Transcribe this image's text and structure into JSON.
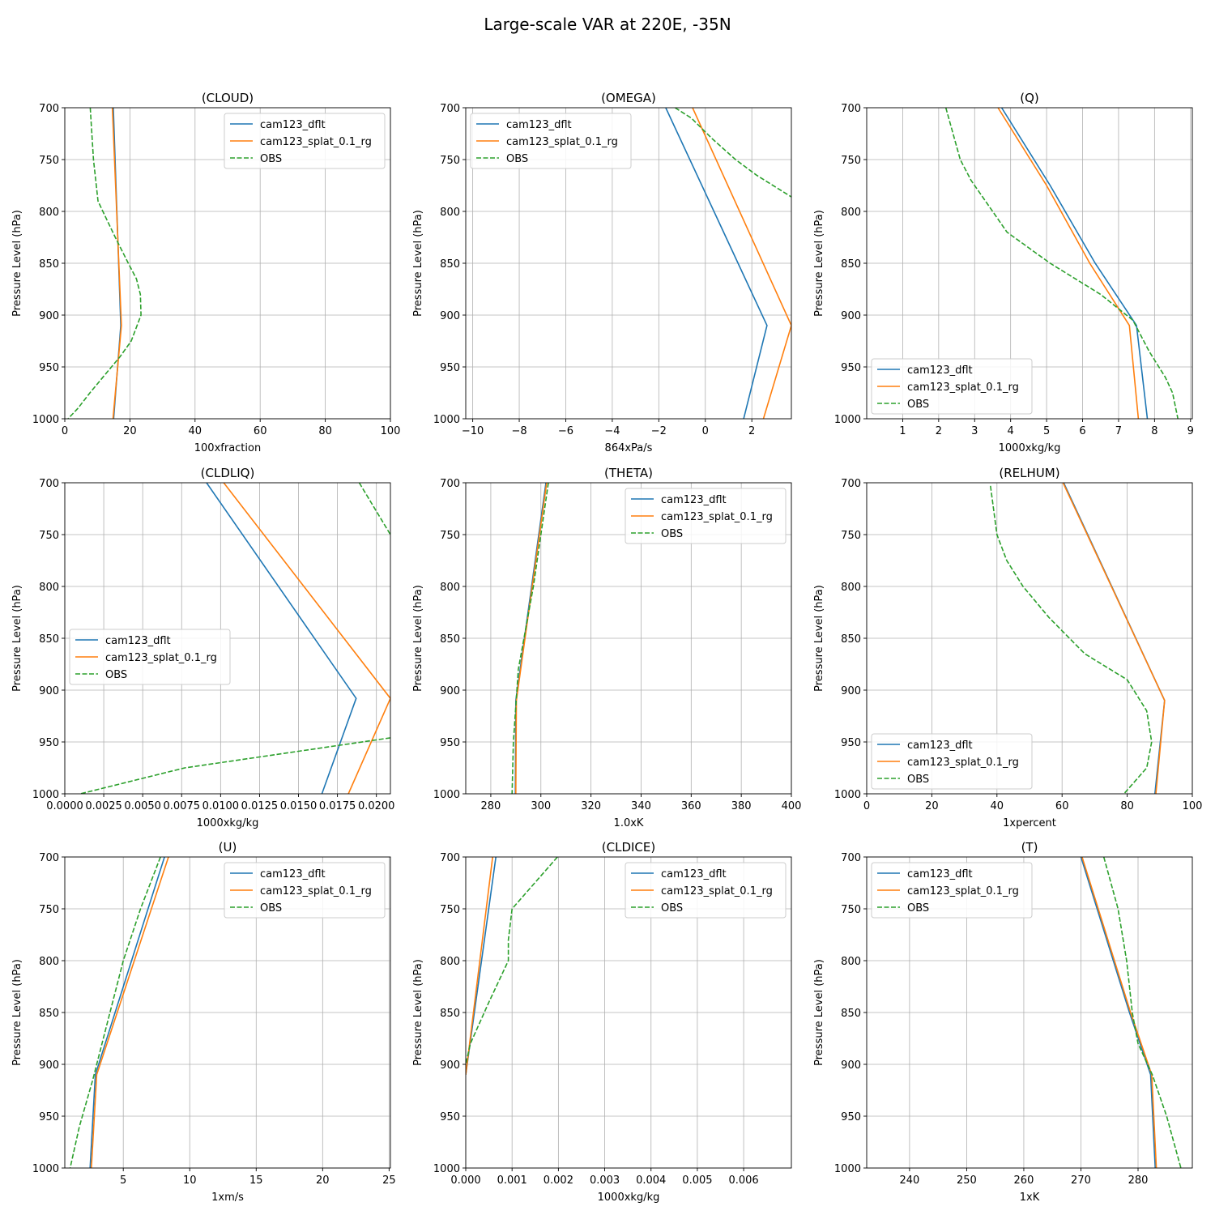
{
  "figure_title": "Large-scale VAR at 220E, -35N",
  "colors": {
    "cam123_dflt": "#1f77b4",
    "cam123_splat_0.1_rg": "#ff7f0e",
    "OBS": "#2ca02c",
    "grid": "#b0b0b0"
  },
  "chart_data": [
    {
      "type": "line",
      "title": "(CLOUD)",
      "xlabel": "100xfraction",
      "ylabel": "Pressure Level (hPa)",
      "xlim": [
        0,
        100
      ],
      "ylim": [
        700,
        1000
      ],
      "xticks": [
        0,
        20,
        40,
        60,
        80,
        100
      ],
      "xtick_labels": [
        "0",
        "20",
        "40",
        "60",
        "80",
        "100"
      ],
      "yticks": [
        700,
        750,
        800,
        850,
        900,
        950,
        1000
      ],
      "ytick_labels": [
        "700",
        "750",
        "800",
        "850",
        "900",
        "950",
        "1000"
      ],
      "grid": true,
      "legend": "upper-right",
      "series": [
        {
          "name": "cam123_dflt",
          "style": "solid",
          "points": [
            [
              14.9,
              700
            ],
            [
              17.2,
              910
            ],
            [
              15.0,
              1000
            ]
          ]
        },
        {
          "name": "cam123_splat_0.1_rg",
          "style": "solid",
          "points": [
            [
              14.6,
              700
            ],
            [
              17.4,
              910
            ],
            [
              14.8,
              1000
            ]
          ]
        },
        {
          "name": "OBS",
          "style": "dashed",
          "points": [
            [
              7.8,
              700
            ],
            [
              8.8,
              750
            ],
            [
              10.2,
              790
            ],
            [
              11.7,
              800
            ],
            [
              15.5,
              825
            ],
            [
              19.5,
              850
            ],
            [
              22.0,
              865
            ],
            [
              23.2,
              880
            ],
            [
              23.4,
              900
            ],
            [
              20.4,
              925
            ],
            [
              17.0,
              940
            ],
            [
              13.0,
              955
            ],
            [
              7.7,
              975
            ],
            [
              4.0,
              990
            ],
            [
              1.0,
              1000
            ]
          ]
        }
      ]
    },
    {
      "type": "line",
      "title": "(OMEGA)",
      "xlabel": "864xPa/s",
      "ylabel": "Pressure Level (hPa)",
      "xlim": [
        -10.3,
        3.7
      ],
      "ylim": [
        700,
        1000
      ],
      "xticks": [
        -10,
        -8,
        -6,
        -4,
        -2,
        0,
        2
      ],
      "xtick_labels": [
        "−10",
        "−8",
        "−6",
        "−4",
        "−2",
        "0",
        "2"
      ],
      "yticks": [
        700,
        750,
        800,
        850,
        900,
        950,
        1000
      ],
      "ytick_labels": [
        "700",
        "750",
        "800",
        "850",
        "900",
        "950",
        "1000"
      ],
      "grid": true,
      "legend": "upper-left",
      "series": [
        {
          "name": "cam123_dflt",
          "style": "solid",
          "points": [
            [
              -1.7,
              700
            ],
            [
              2.65,
              910
            ],
            [
              1.65,
              1000
            ]
          ]
        },
        {
          "name": "cam123_splat_0.1_rg",
          "style": "solid",
          "points": [
            [
              -0.55,
              700
            ],
            [
              3.7,
              910
            ],
            [
              2.5,
              1000
            ]
          ]
        },
        {
          "name": "OBS",
          "style": "dashed",
          "points": [
            [
              -1.3,
              700
            ],
            [
              -0.6,
              710
            ],
            [
              0.3,
              730
            ],
            [
              1.3,
              750
            ],
            [
              2.2,
              765
            ],
            [
              3.7,
              786
            ]
          ]
        }
      ]
    },
    {
      "type": "line",
      "title": "(Q)",
      "xlabel": "1000xkg/kg",
      "ylabel": "Pressure Level (hPa)",
      "xlim": [
        0.0,
        9.05
      ],
      "ylim": [
        700,
        1000
      ],
      "xticks": [
        1,
        2,
        3,
        4,
        5,
        6,
        7,
        8,
        9
      ],
      "xtick_labels": [
        "1",
        "2",
        "3",
        "4",
        "5",
        "6",
        "7",
        "8",
        "9"
      ],
      "yticks": [
        700,
        750,
        800,
        850,
        900,
        950,
        1000
      ],
      "ytick_labels": [
        "700",
        "750",
        "800",
        "850",
        "900",
        "950",
        "1000"
      ],
      "grid": true,
      "legend": "lower-left",
      "series": [
        {
          "name": "cam123_dflt",
          "style": "solid",
          "points": [
            [
              3.75,
              700
            ],
            [
              5.1,
              775
            ],
            [
              6.35,
              850
            ],
            [
              7.5,
              910
            ],
            [
              7.8,
              1000
            ]
          ]
        },
        {
          "name": "cam123_splat_0.1_rg",
          "style": "solid",
          "points": [
            [
              3.65,
              700
            ],
            [
              5.0,
              775
            ],
            [
              6.2,
              850
            ],
            [
              7.3,
              910
            ],
            [
              7.55,
              1000
            ]
          ]
        },
        {
          "name": "OBS",
          "style": "dashed",
          "points": [
            [
              2.2,
              700
            ],
            [
              2.6,
              750
            ],
            [
              2.9,
              770
            ],
            [
              3.5,
              800
            ],
            [
              3.9,
              820
            ],
            [
              5.1,
              850
            ],
            [
              6.5,
              880
            ],
            [
              7.4,
              905
            ],
            [
              7.85,
              935
            ],
            [
              8.3,
              960
            ],
            [
              8.5,
              975
            ],
            [
              8.65,
              1000
            ]
          ]
        }
      ]
    },
    {
      "type": "line",
      "title": "(CLDLIQ)",
      "xlabel": "1000xkg/kg",
      "ylabel": "Pressure Level (hPa)",
      "xlim": [
        0.0,
        0.0209
      ],
      "ylim": [
        700,
        1000
      ],
      "xticks": [
        0.0,
        0.0025,
        0.005,
        0.0075,
        0.01,
        0.0125,
        0.015,
        0.0175,
        0.02
      ],
      "xtick_labels": [
        "0.0000",
        "0.0025",
        "0.0050",
        "0.0075",
        "0.0100",
        "0.0125",
        "0.0150",
        "0.0175",
        "0.0200"
      ],
      "yticks": [
        700,
        750,
        800,
        850,
        900,
        950,
        1000
      ],
      "ytick_labels": [
        "700",
        "750",
        "800",
        "850",
        "900",
        "950",
        "1000"
      ],
      "grid": true,
      "legend": "center-left",
      "series": [
        {
          "name": "cam123_dflt",
          "style": "solid",
          "points": [
            [
              0.0091,
              700
            ],
            [
              0.0187,
              908
            ],
            [
              0.0165,
              1000
            ]
          ]
        },
        {
          "name": "cam123_splat_0.1_rg",
          "style": "solid",
          "points": [
            [
              0.0102,
              700
            ],
            [
              0.0209,
              908
            ],
            [
              0.0182,
              1000
            ]
          ]
        },
        {
          "name": "OBS",
          "style": "dashed",
          "points": [
            [
              0.0189,
              700
            ],
            [
              0.0209,
              750
            ]
          ]
        },
        {
          "name": "OBS",
          "style": "dashed",
          "points": [
            [
              0.0209,
              946
            ],
            [
              0.0077,
              975
            ],
            [
              0.001,
              1000
            ]
          ]
        }
      ]
    },
    {
      "type": "line",
      "title": "(THETA)",
      "xlabel": "1.0xK",
      "ylabel": "Pressure Level (hPa)",
      "xlim": [
        270,
        400
      ],
      "ylim": [
        700,
        1000
      ],
      "xticks": [
        280,
        300,
        320,
        340,
        360,
        380,
        400
      ],
      "xtick_labels": [
        "280",
        "300",
        "320",
        "340",
        "360",
        "380",
        "400"
      ],
      "yticks": [
        700,
        750,
        800,
        850,
        900,
        950,
        1000
      ],
      "ytick_labels": [
        "700",
        "750",
        "800",
        "850",
        "900",
        "950",
        "1000"
      ],
      "grid": true,
      "legend": "upper-right",
      "series": [
        {
          "name": "cam123_dflt",
          "style": "solid",
          "points": [
            [
              302.0,
              700
            ],
            [
              290.0,
              910
            ],
            [
              289.8,
              1000
            ]
          ]
        },
        {
          "name": "cam123_splat_0.1_rg",
          "style": "solid",
          "points": [
            [
              302.3,
              700
            ],
            [
              290.2,
              910
            ],
            [
              290.0,
              1000
            ]
          ]
        },
        {
          "name": "OBS",
          "style": "dashed",
          "points": [
            [
              303.0,
              700
            ],
            [
              297.0,
              800
            ],
            [
              291.0,
              880
            ],
            [
              289.0,
              950
            ],
            [
              288.5,
              1000
            ]
          ]
        }
      ]
    },
    {
      "type": "line",
      "title": "(RELHUM)",
      "xlabel": "1xpercent",
      "ylabel": "Pressure Level (hPa)",
      "xlim": [
        0,
        100
      ],
      "ylim": [
        700,
        1000
      ],
      "xticks": [
        0,
        20,
        40,
        60,
        80,
        100
      ],
      "xtick_labels": [
        "0",
        "20",
        "40",
        "60",
        "80",
        "100"
      ],
      "yticks": [
        700,
        750,
        800,
        850,
        900,
        950,
        1000
      ],
      "ytick_labels": [
        "700",
        "750",
        "800",
        "850",
        "900",
        "950",
        "1000"
      ],
      "grid": true,
      "legend": "lower-left",
      "series": [
        {
          "name": "cam123_dflt",
          "style": "solid",
          "points": [
            [
              60.5,
              700
            ],
            [
              91.5,
              910
            ],
            [
              88.5,
              1000
            ]
          ]
        },
        {
          "name": "cam123_splat_0.1_rg",
          "style": "solid",
          "points": [
            [
              60.3,
              700
            ],
            [
              91.5,
              910
            ],
            [
              88.8,
              1000
            ]
          ]
        },
        {
          "name": "OBS",
          "style": "dashed",
          "points": [
            [
              38.0,
              703
            ],
            [
              40.0,
              750
            ],
            [
              43.0,
              775
            ],
            [
              48.0,
              800
            ],
            [
              56.0,
              830
            ],
            [
              67.0,
              865
            ],
            [
              80.0,
              890
            ],
            [
              86.0,
              920
            ],
            [
              87.5,
              950
            ],
            [
              86.0,
              975
            ],
            [
              79.0,
              1000
            ]
          ]
        }
      ]
    },
    {
      "type": "line",
      "title": "(U)",
      "xlabel": "1xm/s",
      "ylabel": "Pressure Level (hPa)",
      "xlim": [
        0.6,
        25.1
      ],
      "ylim": [
        700,
        1000
      ],
      "xticks": [
        5,
        10,
        15,
        20,
        25
      ],
      "xtick_labels": [
        "5",
        "10",
        "15",
        "20",
        "25"
      ],
      "yticks": [
        700,
        750,
        800,
        850,
        900,
        950,
        1000
      ],
      "ytick_labels": [
        "700",
        "750",
        "800",
        "850",
        "900",
        "950",
        "1000"
      ],
      "grid": true,
      "legend": "upper-right",
      "series": [
        {
          "name": "cam123_dflt",
          "style": "solid",
          "points": [
            [
              8.1,
              700
            ],
            [
              2.9,
              910
            ],
            [
              2.5,
              1000
            ]
          ]
        },
        {
          "name": "cam123_splat_0.1_rg",
          "style": "solid",
          "points": [
            [
              8.4,
              700
            ],
            [
              3.0,
              910
            ],
            [
              2.6,
              1000
            ]
          ]
        },
        {
          "name": "OBS",
          "style": "dashed",
          "points": [
            [
              7.8,
              700
            ],
            [
              6.3,
              750
            ],
            [
              5.0,
              800
            ],
            [
              3.6,
              870
            ],
            [
              2.7,
              915
            ],
            [
              1.7,
              960
            ],
            [
              1.0,
              1000
            ]
          ]
        }
      ]
    },
    {
      "type": "line",
      "title": "(CLDICE)",
      "xlabel": "1000xkg/kg",
      "ylabel": "Pressure Level (hPa)",
      "xlim": [
        0.0,
        0.00703
      ],
      "ylim": [
        700,
        1000
      ],
      "xticks": [
        0.0,
        0.001,
        0.002,
        0.003,
        0.004,
        0.005,
        0.006
      ],
      "xtick_labels": [
        "0.000",
        "0.001",
        "0.002",
        "0.003",
        "0.004",
        "0.005",
        "0.006"
      ],
      "yticks": [
        700,
        750,
        800,
        850,
        900,
        950,
        1000
      ],
      "ytick_labels": [
        "700",
        "750",
        "800",
        "850",
        "900",
        "950",
        "1000"
      ],
      "grid": true,
      "legend": "upper-right",
      "series": [
        {
          "name": "cam123_dflt",
          "style": "solid",
          "points": [
            [
              0.00065,
              700
            ],
            [
              0.0,
              910
            ]
          ]
        },
        {
          "name": "cam123_splat_0.1_rg",
          "style": "solid",
          "points": [
            [
              0.00058,
              700
            ],
            [
              0.0,
              910
            ]
          ]
        },
        {
          "name": "OBS",
          "style": "dashed",
          "points": [
            [
              0.00198,
              700
            ],
            [
              0.001,
              750
            ],
            [
              0.00092,
              780
            ],
            [
              0.00092,
              800
            ],
            [
              0.0005,
              840
            ],
            [
              0.0001,
              880
            ],
            [
              0.0,
              900
            ]
          ]
        }
      ]
    },
    {
      "type": "line",
      "title": "(T)",
      "xlabel": "1xK",
      "ylabel": "Pressure Level (hPa)",
      "xlim": [
        232.5,
        289.5
      ],
      "ylim": [
        700,
        1000
      ],
      "xticks": [
        240,
        250,
        260,
        270,
        280
      ],
      "xtick_labels": [
        "240",
        "250",
        "260",
        "270",
        "280"
      ],
      "yticks": [
        700,
        750,
        800,
        850,
        900,
        950,
        1000
      ],
      "ytick_labels": [
        "700",
        "750",
        "800",
        "850",
        "900",
        "950",
        "1000"
      ],
      "grid": true,
      "legend": "upper-left",
      "series": [
        {
          "name": "cam123_dflt",
          "style": "solid",
          "points": [
            [
              270.0,
              700
            ],
            [
              278.5,
              850
            ],
            [
              282.2,
              910
            ],
            [
              283.0,
              1000
            ]
          ]
        },
        {
          "name": "cam123_splat_0.1_rg",
          "style": "solid",
          "points": [
            [
              270.2,
              700
            ],
            [
              278.7,
              850
            ],
            [
              282.4,
              910
            ],
            [
              283.2,
              1000
            ]
          ]
        },
        {
          "name": "OBS",
          "style": "dashed",
          "points": [
            [
              274.0,
              700
            ],
            [
              276.5,
              750
            ],
            [
              278.0,
              800
            ],
            [
              279.0,
              850
            ],
            [
              280.0,
              880
            ],
            [
              282.5,
              910
            ],
            [
              285.0,
              950
            ],
            [
              287.5,
              1000
            ]
          ]
        }
      ]
    }
  ]
}
